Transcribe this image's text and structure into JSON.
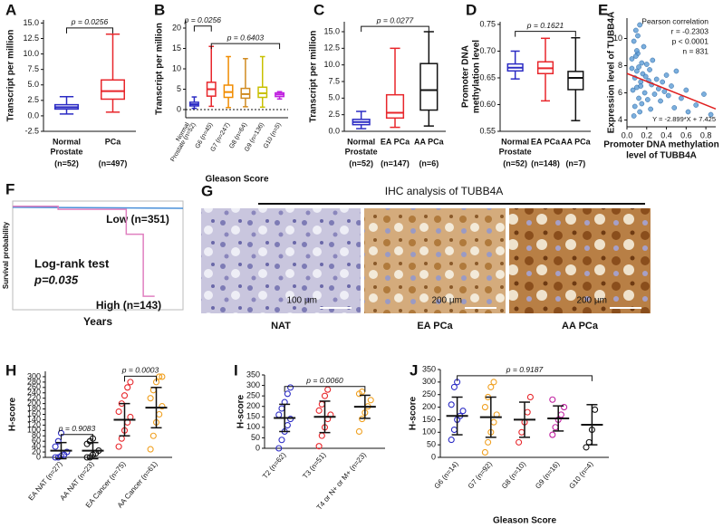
{
  "chart_data": [
    {
      "type": "box",
      "panel": "A",
      "ylabel": [
        "Transcript per million"
      ],
      "ylim": [
        -2.5,
        15.5
      ],
      "yticks": [
        -2.5,
        {
          "value": 0,
          "label": "0.0"
        },
        2.5,
        {
          "value": 5,
          "label": "5.0"
        },
        7.5,
        {
          "value": 10,
          "label": "10.0"
        },
        12.5,
        {
          "value": 15,
          "label": "15.0"
        }
      ],
      "categories": [
        [
          "Normal",
          "Prostate"
        ],
        [
          "PCa"
        ]
      ],
      "n_labels": [
        "(n=52)",
        "(n=497)"
      ],
      "colors": [
        "#2b2bc4",
        "#e8262b"
      ],
      "boxes": [
        {
          "min": 0.3,
          "q1": 1.1,
          "median": 1.4,
          "q3": 1.8,
          "max": 3.1
        },
        {
          "min": 0.6,
          "q1": 2.7,
          "median": 4.0,
          "q3": 5.8,
          "max": 13.2
        }
      ],
      "brackets": [
        {
          "label": "p = 0.0256",
          "from": 0,
          "to": 1,
          "y": 14.2
        }
      ]
    },
    {
      "type": "box",
      "panel": "B",
      "ylabel": [
        "Transcript per million"
      ],
      "xlabel": "Gleason Score",
      "ylim": [
        -2,
        22
      ],
      "yticks": [
        0,
        5,
        10,
        15,
        20
      ],
      "refline": 0,
      "categories": [
        [
          "Normal",
          "Prostate (n=52)"
        ],
        [
          "G6 (n=45)"
        ],
        [
          "G7 (n=247)"
        ],
        [
          "G8 (n=64)"
        ],
        [
          "G9 (n=136)"
        ],
        [
          "G10 (n=5)"
        ]
      ],
      "colors": [
        "#2b2bc4",
        "#e8262b",
        "#f08c00",
        "#d08a20",
        "#c8c000",
        "#c020e0"
      ],
      "boxes": [
        {
          "min": 0.3,
          "q1": 0.9,
          "median": 1.3,
          "q3": 1.8,
          "max": 3.1
        },
        {
          "min": 0.8,
          "q1": 3.3,
          "median": 5.0,
          "q3": 6.7,
          "max": 15.5
        },
        {
          "min": 0.5,
          "q1": 3.0,
          "median": 4.3,
          "q3": 6.0,
          "max": 13.0
        },
        {
          "min": 0.7,
          "q1": 2.8,
          "median": 3.8,
          "q3": 5.2,
          "max": 12.5
        },
        {
          "min": 0.6,
          "q1": 3.0,
          "median": 4.0,
          "q3": 5.5,
          "max": 13.0
        },
        {
          "min": 2.6,
          "q1": 3.2,
          "median": 3.7,
          "q3": 4.1,
          "max": 4.4
        }
      ],
      "brackets": [
        {
          "label": "p = 0.0256",
          "from": 0,
          "to": 1,
          "y": 20.5
        },
        {
          "label": "p = 0.6403",
          "from": 1,
          "to": 5,
          "y": 16.2
        }
      ]
    },
    {
      "type": "box",
      "panel": "C",
      "ylabel": [
        "Transcript per million"
      ],
      "ylim": [
        0,
        16.5
      ],
      "yticks": [
        {
          "value": 0,
          "label": "0.0"
        },
        2.5,
        {
          "value": 5,
          "label": "5.0"
        },
        7.5,
        {
          "value": 10,
          "label": "10.0"
        },
        12.5,
        {
          "value": 15,
          "label": "15.0"
        }
      ],
      "categories": [
        [
          "Normal",
          "Prostate"
        ],
        [
          "EA PCa"
        ],
        [
          "AA PCa"
        ]
      ],
      "n_labels": [
        "(n=52)",
        "(n=147)",
        "(n=6)"
      ],
      "colors": [
        "#2b2bc4",
        "#e8262b",
        "#111111"
      ],
      "boxes": [
        {
          "min": 0.4,
          "q1": 1.0,
          "median": 1.4,
          "q3": 1.8,
          "max": 3.0
        },
        {
          "min": 0.6,
          "q1": 2.0,
          "median": 2.8,
          "q3": 5.5,
          "max": 12.5
        },
        {
          "min": 0.8,
          "q1": 3.2,
          "median": 6.2,
          "q3": 10.2,
          "max": 15.0
        }
      ],
      "brackets": [
        {
          "label": "p = 0.0277",
          "from": 0,
          "to": 2,
          "y": 15.8
        }
      ]
    },
    {
      "type": "box",
      "panel": "D",
      "ylabel": [
        "Promoter DNA",
        "methylation level"
      ],
      "ylim": [
        0.55,
        0.755
      ],
      "yticks": [
        0.55,
        {
          "value": 0.6,
          "label": "0.60"
        },
        0.65,
        {
          "value": 0.7,
          "label": "0.70"
        },
        0.75
      ],
      "categories": [
        [
          "Normal",
          "Prostate"
        ],
        [
          "EA PCa"
        ],
        [
          "AA PCa"
        ]
      ],
      "n_labels": [
        "(n=52)",
        "(n=148)",
        "(n=7)"
      ],
      "colors": [
        "#2b2bc4",
        "#e8262b",
        "#111111"
      ],
      "boxes": [
        {
          "min": 0.648,
          "q1": 0.663,
          "median": 0.669,
          "q3": 0.676,
          "max": 0.7
        },
        {
          "min": 0.607,
          "q1": 0.658,
          "median": 0.668,
          "q3": 0.68,
          "max": 0.724
        },
        {
          "min": 0.57,
          "q1": 0.628,
          "median": 0.65,
          "q3": 0.662,
          "max": 0.725
        }
      ],
      "brackets": [
        {
          "label": "p = 0.1621",
          "from": 0,
          "to": 2,
          "y": 0.737
        }
      ]
    },
    {
      "type": "scatter",
      "panel": "E",
      "ylabel": [
        "Expression level of TUBB4A"
      ],
      "xlabel": [
        "Promoter DNA methylation",
        "level of TUBB4A"
      ],
      "xlim": [
        0,
        0.9
      ],
      "xticks": [
        {
          "value": 0,
          "label": "0.0"
        },
        0.2,
        0.4,
        0.6,
        0.8
      ],
      "ylim": [
        3.5,
        11.5
      ],
      "yticks": [
        4,
        6,
        8,
        10
      ],
      "color": "#5b9bd5",
      "fit_color": "#e02020",
      "annotations": [
        "Pearson correlation",
        "r = -0.2303",
        "p < 0.0001",
        "n = 831"
      ],
      "fit": {
        "slope": -2.899,
        "intercept": 7.425
      },
      "fit_label": "Y = -2.899*X + 7.425",
      "x": [
        0.05,
        0.06,
        0.07,
        0.08,
        0.08,
        0.09,
        0.1,
        0.1,
        0.11,
        0.12,
        0.12,
        0.13,
        0.14,
        0.15,
        0.15,
        0.16,
        0.17,
        0.18,
        0.19,
        0.2,
        0.21,
        0.22,
        0.23,
        0.24,
        0.25,
        0.26,
        0.28,
        0.3,
        0.32,
        0.34,
        0.36,
        0.38,
        0.4,
        0.42,
        0.45,
        0.48,
        0.5,
        0.55,
        0.6,
        0.62,
        0.7,
        0.78,
        0.85,
        0.07,
        0.1,
        0.13,
        0.05,
        0.09,
        0.11,
        0.14
      ],
      "values": [
        8.5,
        6.2,
        9.8,
        7.1,
        5.0,
        10.6,
        7.6,
        6.4,
        8.9,
        5.6,
        7.9,
        11.0,
        6.8,
        8.2,
        5.2,
        7.4,
        9.4,
        6.0,
        7.2,
        8.1,
        5.5,
        6.9,
        7.7,
        4.8,
        6.6,
        8.4,
        5.9,
        7.0,
        6.3,
        5.4,
        6.8,
        6.1,
        7.3,
        5.8,
        6.5,
        4.9,
        7.6,
        5.6,
        6.2,
        4.6,
        5.1,
        5.9,
        4.4,
        4.3,
        9.1,
        4.6,
        7.8,
        8.7,
        10.2,
        6.5
      ]
    },
    {
      "type": "step",
      "panel": "F",
      "ylabel": "Survival probability",
      "xlabel": "Years",
      "xlim": [
        0,
        15
      ],
      "ylim": [
        0,
        1.05
      ],
      "annotations": [
        "Log-rank test",
        "p=0.035"
      ],
      "series": [
        {
          "name": "Low (n=351)",
          "color": "#4a90d9",
          "x": [
            0,
            15
          ],
          "values": [
            0.99,
            0.98
          ]
        },
        {
          "name": "High (n=143)",
          "color": "#e080c0",
          "x": [
            0,
            4,
            4,
            10,
            10,
            11.5,
            11.5,
            12.5
          ],
          "values": [
            1,
            1,
            0.97,
            0.97,
            0.73,
            0.73,
            0.13,
            0.13
          ]
        }
      ]
    },
    {
      "type": "dot",
      "panel": "H",
      "ylabel": [
        "H-score"
      ],
      "ylim": [
        0,
        320
      ],
      "yticks": [
        0,
        20,
        40,
        60,
        80,
        100,
        120,
        140,
        160,
        180,
        200,
        220,
        240,
        260,
        280,
        300
      ],
      "categories": [
        "EA NAT (n=27)",
        "AA NAT (n=23)",
        "EA Cancer (n=75)",
        "AA Cancer (n=61)"
      ],
      "colors": [
        "#2b2bc4",
        "#111111",
        "#e8262b",
        "#f0a020"
      ],
      "groups": [
        {
          "mean": 25,
          "sd": 30,
          "points": [
            0,
            0,
            5,
            10,
            20,
            40,
            60,
            90
          ]
        },
        {
          "mean": 25,
          "sd": 30,
          "points": [
            0,
            0,
            10,
            15,
            25,
            50,
            60,
            70
          ]
        },
        {
          "mean": 140,
          "sd": 60,
          "points": [
            40,
            70,
            100,
            130,
            150,
            170,
            200,
            230,
            260,
            280
          ]
        },
        {
          "mean": 185,
          "sd": 75,
          "points": [
            30,
            80,
            130,
            160,
            190,
            220,
            250,
            280,
            300,
            300
          ]
        }
      ],
      "brackets": [
        {
          "label": "p = 0.9083",
          "from": 0,
          "to": 1,
          "y": 85
        },
        {
          "label": "p = 0.0003",
          "from": 2,
          "to": 3,
          "y": 302
        }
      ]
    },
    {
      "type": "dot",
      "panel": "I",
      "ylabel": [
        "H-score"
      ],
      "ylim": [
        0,
        350
      ],
      "yticks": [
        0,
        50,
        100,
        150,
        200,
        250,
        300,
        350
      ],
      "categories": [
        "T2 (n=62)",
        "T3 (n=51)",
        "T4 or N+ or M+ (n=23)"
      ],
      "colors": [
        "#2b2bc4",
        "#e8262b",
        "#f0a020"
      ],
      "groups": [
        {
          "mean": 145,
          "sd": 65,
          "points": [
            0,
            40,
            80,
            110,
            140,
            160,
            190,
            220,
            260,
            290
          ]
        },
        {
          "mean": 150,
          "sd": 75,
          "points": [
            10,
            60,
            100,
            140,
            160,
            180,
            210,
            250,
            280
          ]
        },
        {
          "mean": 198,
          "sd": 55,
          "points": [
            80,
            140,
            170,
            200,
            230,
            260,
            270
          ]
        }
      ],
      "brackets": [
        {
          "label": "p = 0.0060",
          "from": 0,
          "to": 2,
          "y": 295
        }
      ]
    },
    {
      "type": "dot",
      "panel": "J",
      "ylabel": [
        "H-score"
      ],
      "xlabel": "Gleason Score",
      "ylim": [
        0,
        350
      ],
      "yticks": [
        0,
        50,
        100,
        150,
        200,
        250,
        300,
        350
      ],
      "categories": [
        "G6 (n=14)",
        "G7 (n=92)",
        "G8 (n=10)",
        "G9 (n=16)",
        "G10 (n=4)"
      ],
      "colors": [
        "#2b2bc4",
        "#f0a020",
        "#e8262b",
        "#c020a0",
        "#111111"
      ],
      "groups": [
        {
          "mean": 165,
          "sd": 75,
          "points": [
            70,
            110,
            150,
            165,
            185,
            210,
            280,
            300
          ]
        },
        {
          "mean": 160,
          "sd": 80,
          "points": [
            20,
            60,
            100,
            140,
            170,
            200,
            240,
            280,
            300
          ]
        },
        {
          "mean": 150,
          "sd": 70,
          "points": [
            60,
            100,
            140,
            180,
            240
          ]
        },
        {
          "mean": 155,
          "sd": 50,
          "points": [
            90,
            120,
            150,
            170,
            200,
            230
          ]
        },
        {
          "mean": 130,
          "sd": 80,
          "points": [
            40,
            60,
            110,
            190
          ]
        }
      ],
      "brackets": [
        {
          "label": "p = 0.9187",
          "from": 0,
          "to": 4,
          "y": 325
        }
      ]
    }
  ],
  "ihc": {
    "panel": "G",
    "title": "IHC analysis of TUBB4A",
    "images": [
      {
        "label": "NAT",
        "scale": "100 µm"
      },
      {
        "label": "EA PCa",
        "scale": "200 µm"
      },
      {
        "label": "AA PCa",
        "scale": "200 µm"
      }
    ]
  }
}
